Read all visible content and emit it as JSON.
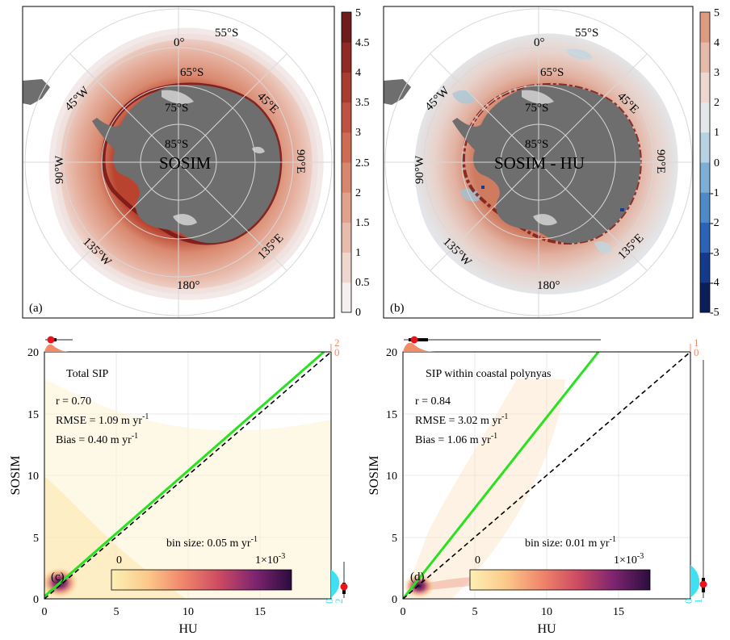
{
  "colors": {
    "land": "#6e6e6e",
    "ice_shelf": "#c4c4c4",
    "ocean": "#ffffff",
    "fit_line": "#27e31f",
    "one_to_one": "#000000",
    "hist_top": "#f08c68",
    "hist_right": "#3fe0f2",
    "median_dot": "#e8141b"
  },
  "maps": {
    "a": {
      "panel_label": "(a)",
      "center_label": "SOSIM",
      "colorbar_ticks": [
        "5",
        "4.5",
        "4",
        "3.5",
        "3",
        "2.5",
        "2",
        "1.5",
        "1",
        "0.5",
        "0"
      ]
    },
    "b": {
      "panel_label": "(b)",
      "center_label": "SOSIM - HU",
      "colorbar_ticks": [
        "5",
        "4",
        "3",
        "2",
        "1",
        "0",
        "-1",
        "-2",
        "-3",
        "-4",
        "-5"
      ]
    },
    "lat_labels": [
      "55°S",
      "65°S",
      "75°S",
      "85°S"
    ],
    "lon_labels": [
      "0°",
      "45°E",
      "90°E",
      "135°E",
      "180°",
      "135°W",
      "90°W",
      "45°W"
    ],
    "seq_colors": [
      "#f5efef",
      "#efd6cf",
      "#e8bcad",
      "#e0a28c",
      "#d8876c",
      "#cd6c52",
      "#bd5340",
      "#a83c31",
      "#8f2a26",
      "#6e1c1c",
      "#4a1212"
    ],
    "div_colors": [
      "#0a1e5a",
      "#133a8c",
      "#2a63b8",
      "#4e8ac8",
      "#7eaed6",
      "#b7d2e2",
      "#e4e8ea",
      "#ecd8d0",
      "#e6bba9",
      "#dd9b82",
      "#d17b5f",
      "#c25c46",
      "#ad4235",
      "#952d28",
      "#78201f",
      "#521515"
    ]
  },
  "scatter": {
    "c": {
      "panel_label": "(c)",
      "title": "Total SIP",
      "stats": {
        "r": "r = 0.70",
        "rmse": "RMSE = 1.09 m yr",
        "bias": "Bias = 0.40 m yr",
        "exp": "-1"
      },
      "bin_size": "bin size: 0.05 m yr",
      "density_min": "0",
      "density_max": "1×10",
      "density_exp": "-3",
      "top_hist_ticks": [
        "2",
        "0"
      ],
      "right_hist_ticks": [
        "0",
        "2"
      ]
    },
    "d": {
      "panel_label": "(d)",
      "title": "SIP within coastal polynyas",
      "stats": {
        "r": "r = 0.84",
        "rmse": "RMSE = 3.02 m yr",
        "bias": "Bias = 1.06 m yr",
        "exp": "-1"
      },
      "bin_size": "bin size: 0.01 m yr",
      "density_min": "0",
      "density_max": "1×10",
      "density_exp": "-3",
      "top_hist_ticks": [
        "1",
        "0"
      ],
      "right_hist_ticks": [
        "0",
        "1"
      ]
    },
    "xlabel": "HU",
    "ylabel": "SOSIM",
    "x_ticks": [
      "0",
      "5",
      "10",
      "15"
    ],
    "y_ticks": [
      "0",
      "5",
      "10",
      "15",
      "20"
    ]
  },
  "chart_data": [
    {
      "type": "heatmap",
      "panel": "(a)",
      "title": "SOSIM",
      "colorbar_range": [
        0,
        5
      ],
      "colorbar_step": 0.5
    },
    {
      "type": "heatmap",
      "panel": "(b)",
      "title": "SOSIM - HU",
      "colorbar_range": [
        -5,
        5
      ],
      "colorbar_step": 1
    },
    {
      "type": "scatter",
      "panel": "(c)",
      "title": "Total SIP",
      "xlabel": "HU",
      "ylabel": "SOSIM",
      "xlim": [
        0,
        20
      ],
      "ylim": [
        0,
        20
      ],
      "series": [
        {
          "name": "fit",
          "x": [
            0,
            19.5
          ],
          "y": [
            0.2,
            20
          ]
        },
        {
          "name": "1:1",
          "x": [
            0,
            20
          ],
          "y": [
            0,
            20
          ]
        }
      ],
      "stats": {
        "r": 0.7,
        "rmse": 1.09,
        "bias": 0.4
      }
    },
    {
      "type": "scatter",
      "panel": "(d)",
      "title": "SIP within coastal polynyas",
      "xlabel": "HU",
      "ylabel": "SOSIM",
      "xlim": [
        0,
        20
      ],
      "ylim": [
        0,
        20
      ],
      "series": [
        {
          "name": "fit",
          "x": [
            0,
            13.6
          ],
          "y": [
            0,
            20
          ]
        },
        {
          "name": "1:1",
          "x": [
            0,
            20
          ],
          "y": [
            0,
            20
          ]
        }
      ],
      "stats": {
        "r": 0.84,
        "rmse": 3.02,
        "bias": 1.06
      }
    }
  ]
}
